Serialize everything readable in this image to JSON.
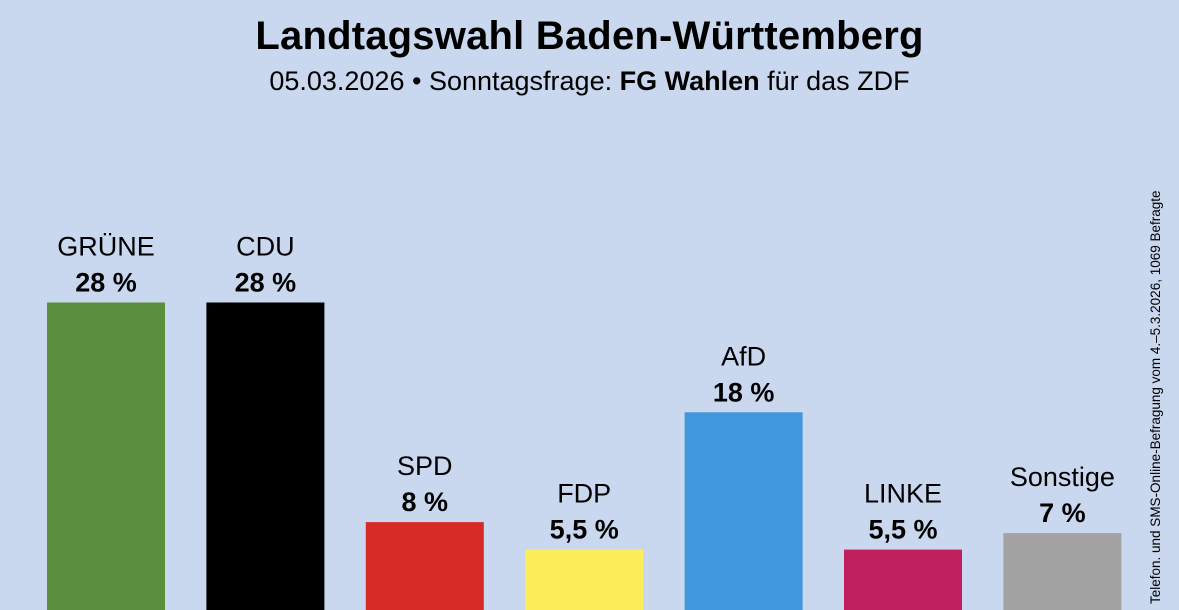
{
  "chart_data": {
    "type": "bar",
    "title": "Landtagswahl Baden-Württemberg",
    "subtitle": {
      "date": "05.03.2026",
      "separator": "•",
      "label": "Sonntagsfrage:",
      "institute": "FG Wahlen",
      "client": "für das ZDF"
    },
    "side_note": "Telefon. und SMS-Online-Befragung vom 4.–5.3.2026, 1069 Befragte",
    "xlabel": "",
    "ylabel": "",
    "ylim": [
      0,
      28.5
    ],
    "grid": false,
    "categories": [
      "GRÜNE",
      "CDU",
      "SPD",
      "FDP",
      "AfD",
      "LINKE",
      "Sonstige"
    ],
    "values": [
      28,
      28,
      8,
      5.5,
      18,
      5.5,
      7
    ],
    "value_labels": [
      "28 %",
      "28 %",
      "8 %",
      "5,5 %",
      "18 %",
      "5,5 %",
      "7 %"
    ],
    "colors": [
      "#5a8f3d",
      "#000000",
      "#d42b27",
      "#fbee5a",
      "#4197dc",
      "#c0205e",
      "#a3a3a3"
    ]
  }
}
